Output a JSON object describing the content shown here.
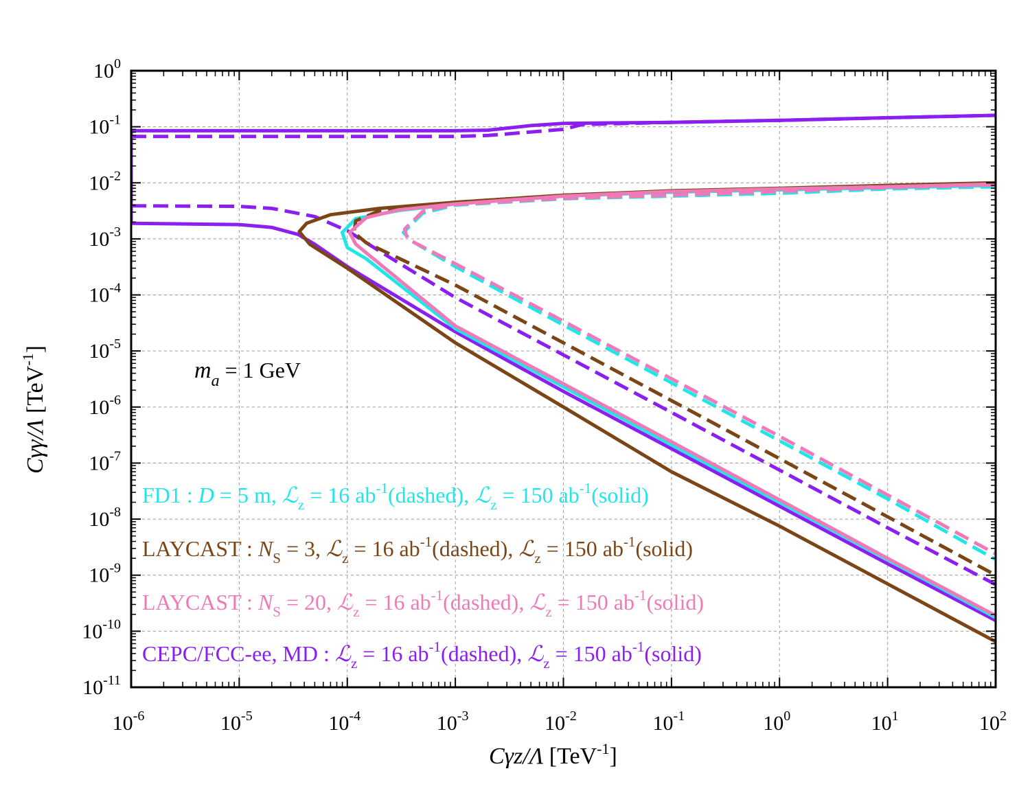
{
  "chart_data": {
    "type": "line",
    "xscale": "log",
    "yscale": "log",
    "xlim": [
      1e-06,
      100
    ],
    "ylim": [
      1e-11,
      1
    ],
    "grid": true,
    "xlabel": {
      "main": "Cγz/Λ",
      "unit_open": " [TeV",
      "unit_exp": "-1",
      "unit_close": "]"
    },
    "ylabel": {
      "main": "Cγγ/Λ",
      "unit_open": " [TeV",
      "unit_exp": "-1",
      "unit_close": "]"
    },
    "x_ticks": [
      {
        "base": "10",
        "exp": "-6"
      },
      {
        "base": "10",
        "exp": "-5"
      },
      {
        "base": "10",
        "exp": "-4"
      },
      {
        "base": "10",
        "exp": "-3"
      },
      {
        "base": "10",
        "exp": "-2"
      },
      {
        "base": "10",
        "exp": "-1"
      },
      {
        "base": "10",
        "exp": "0"
      },
      {
        "base": "10",
        "exp": "1"
      },
      {
        "base": "10",
        "exp": "2"
      }
    ],
    "y_ticks": [
      {
        "base": "10",
        "exp": "0"
      },
      {
        "base": "10",
        "exp": "-1"
      },
      {
        "base": "10",
        "exp": "-2"
      },
      {
        "base": "10",
        "exp": "-3"
      },
      {
        "base": "10",
        "exp": "-4"
      },
      {
        "base": "10",
        "exp": "-5"
      },
      {
        "base": "10",
        "exp": "-6"
      },
      {
        "base": "10",
        "exp": "-7"
      },
      {
        "base": "10",
        "exp": "-8"
      },
      {
        "base": "10",
        "exp": "-9"
      },
      {
        "base": "10",
        "exp": "-10"
      },
      {
        "base": "10",
        "exp": "-11"
      }
    ],
    "annotation": {
      "var": "m",
      "sub": "a",
      "rest": " = 1 GeV"
    },
    "legend": [
      {
        "color": "#22e5e8",
        "parts": [
          {
            "t": "FD1 : "
          },
          {
            "t": "D",
            "it": true
          },
          {
            "t": " = 5 m, "
          },
          {
            "t": "ℒ",
            "it": true
          },
          {
            "t": "z",
            "sub": true
          },
          {
            "t": " = 16 ab"
          },
          {
            "t": "-1",
            "sup": true
          },
          {
            "t": "(dashed), "
          },
          {
            "t": "ℒ",
            "it": true
          },
          {
            "t": "z",
            "sub": true
          },
          {
            "t": " = 150 ab"
          },
          {
            "t": "-1",
            "sup": true
          },
          {
            "t": "(solid)"
          }
        ]
      },
      {
        "color": "#7b4516",
        "parts": [
          {
            "t": "LAYCAST : "
          },
          {
            "t": "N",
            "it": true
          },
          {
            "t": "S",
            "sub": true
          },
          {
            "t": " = 3, "
          },
          {
            "t": "ℒ",
            "it": true
          },
          {
            "t": "z",
            "sub": true
          },
          {
            "t": " = 16 ab"
          },
          {
            "t": "-1",
            "sup": true
          },
          {
            "t": "(dashed), "
          },
          {
            "t": "ℒ",
            "it": true
          },
          {
            "t": "z",
            "sub": true
          },
          {
            "t": " = 150 ab"
          },
          {
            "t": "-1",
            "sup": true
          },
          {
            "t": "(solid)"
          }
        ]
      },
      {
        "color": "#f07ab8",
        "parts": [
          {
            "t": "LAYCAST : "
          },
          {
            "t": "N",
            "it": true
          },
          {
            "t": "S",
            "sub": true
          },
          {
            "t": " = 20, "
          },
          {
            "t": "ℒ",
            "it": true
          },
          {
            "t": "z",
            "sub": true
          },
          {
            "t": " = 16 ab"
          },
          {
            "t": "-1",
            "sup": true
          },
          {
            "t": "(dashed), "
          },
          {
            "t": "ℒ",
            "it": true
          },
          {
            "t": "z",
            "sub": true
          },
          {
            "t": " = 150 ab"
          },
          {
            "t": "-1",
            "sup": true
          },
          {
            "t": "(solid)"
          }
        ]
      },
      {
        "color": "#8b1ff0",
        "parts": [
          {
            "t": "CEPC/FCC-ee, MD : "
          },
          {
            "t": "ℒ",
            "it": true
          },
          {
            "t": "z",
            "sub": true
          },
          {
            "t": " = 16 ab"
          },
          {
            "t": "-1",
            "sup": true
          },
          {
            "t": "(dashed), "
          },
          {
            "t": "ℒ",
            "it": true
          },
          {
            "t": "z",
            "sub": true
          },
          {
            "t": " = 150 ab"
          },
          {
            "t": "-1",
            "sup": true
          },
          {
            "t": "(solid)"
          }
        ]
      }
    ],
    "series": [
      {
        "name": "CEPC/FCC-ee, MD (solid, 150 ab^-1) upper",
        "color": "#8b1ff0",
        "dashed": false,
        "width": 5,
        "points": [
          [
            1e-06,
            0.085
          ],
          [
            0.001,
            0.085
          ],
          [
            0.002,
            0.087
          ],
          [
            0.005,
            0.105
          ],
          [
            0.01,
            0.115
          ],
          [
            0.1,
            0.12
          ],
          [
            1,
            0.13
          ],
          [
            10,
            0.145
          ],
          [
            100,
            0.16
          ]
        ]
      },
      {
        "name": "CEPC/FCC-ee, MD (dashed, 16 ab^-1) upper",
        "color": "#8b1ff0",
        "dashed": true,
        "width": 5,
        "points": [
          [
            1e-06,
            0.067
          ],
          [
            0.001,
            0.067
          ],
          [
            0.002,
            0.07
          ],
          [
            0.01,
            0.09
          ],
          [
            0.015,
            0.11
          ],
          [
            0.1,
            0.12
          ],
          [
            1,
            0.13
          ],
          [
            10,
            0.145
          ],
          [
            100,
            0.16
          ]
        ]
      },
      {
        "name": "CEPC/FCC-ee, MD (solid, 150 ab^-1) left edge",
        "color": "#8b1ff0",
        "dashed": false,
        "width": 5,
        "points": [
          [
            1e-06,
            0.0019
          ],
          [
            1e-06,
            0.085
          ]
        ]
      },
      {
        "name": "CEPC/FCC-ee, MD (solid, 150 ab^-1) lower",
        "color": "#8b1ff0",
        "dashed": false,
        "width": 5,
        "points": [
          [
            1e-06,
            0.0019
          ],
          [
            1e-05,
            0.0018
          ],
          [
            2e-05,
            0.0016
          ],
          [
            3.5e-05,
            0.0012
          ],
          [
            5e-05,
            0.0008
          ],
          [
            0.0001,
            0.00032
          ],
          [
            0.001,
            2.2e-05
          ],
          [
            0.01,
            1.9e-06
          ],
          [
            0.1,
            1.8e-07
          ],
          [
            1,
            1.7e-08
          ],
          [
            10,
            1.6e-09
          ],
          [
            100,
            1.55e-10
          ]
        ]
      },
      {
        "name": "CEPC/FCC-ee, MD (dashed, 16 ab^-1) lower",
        "color": "#8b1ff0",
        "dashed": true,
        "width": 5,
        "points": [
          [
            1e-06,
            0.0039
          ],
          [
            1e-05,
            0.0038
          ],
          [
            2e-05,
            0.0035
          ],
          [
            5e-05,
            0.0025
          ],
          [
            0.0001,
            0.0014
          ],
          [
            0.0002,
            0.0006
          ],
          [
            0.001,
            9e-05
          ],
          [
            0.01,
            8.5e-06
          ],
          [
            0.1,
            8e-07
          ],
          [
            1,
            7.5e-08
          ],
          [
            10,
            7e-09
          ],
          [
            100,
            6.8e-10
          ]
        ]
      },
      {
        "name": "FD1 (solid, 150 ab^-1)",
        "color": "#22e5e8",
        "dashed": false,
        "width": 5,
        "points": [
          [
            100,
            0.009
          ],
          [
            10,
            0.0082
          ],
          [
            1,
            0.0075
          ],
          [
            0.1,
            0.0068
          ],
          [
            0.01,
            0.0058
          ],
          [
            0.001,
            0.0042
          ],
          [
            0.0003,
            0.0032
          ],
          [
            0.00012,
            0.0023
          ],
          [
            9e-05,
            0.0013
          ],
          [
            0.0001,
            0.0007
          ],
          [
            0.00015,
            0.00044
          ],
          [
            0.001,
            2.5e-05
          ],
          [
            0.01,
            2.3e-06
          ],
          [
            0.1,
            2.1e-07
          ],
          [
            1,
            2e-08
          ],
          [
            10,
            1.9e-09
          ],
          [
            100,
            1.75e-10
          ]
        ]
      },
      {
        "name": "FD1 (dashed, 16 ab^-1)",
        "color": "#22e5e8",
        "dashed": true,
        "width": 5,
        "points": [
          [
            100,
            0.0085
          ],
          [
            10,
            0.0078
          ],
          [
            1,
            0.0065
          ],
          [
            0.1,
            0.0058
          ],
          [
            0.01,
            0.0052
          ],
          [
            0.001,
            0.004
          ],
          [
            0.0005,
            0.0029
          ],
          [
            0.00033,
            0.0013
          ],
          [
            0.0004,
            0.0009
          ],
          [
            0.001,
            0.00032
          ],
          [
            0.01,
            2.9e-05
          ],
          [
            0.1,
            2.7e-06
          ],
          [
            1,
            2.5e-07
          ],
          [
            10,
            2.3e-08
          ],
          [
            100,
            1.9e-09
          ]
        ]
      },
      {
        "name": "LAYCAST N_S=3 (solid, 150 ab^-1)",
        "color": "#7b4516",
        "dashed": false,
        "width": 5,
        "points": [
          [
            100,
            0.01
          ],
          [
            10,
            0.009
          ],
          [
            1,
            0.008
          ],
          [
            0.1,
            0.0072
          ],
          [
            0.01,
            0.006
          ],
          [
            0.001,
            0.0045
          ],
          [
            0.0002,
            0.0035
          ],
          [
            7e-05,
            0.0027
          ],
          [
            4.2e-05,
            0.0019
          ],
          [
            3.6e-05,
            0.00135
          ],
          [
            4.5e-05,
            0.0008
          ],
          [
            0.0001,
            0.0003
          ],
          [
            0.001,
            1.4e-05
          ],
          [
            0.01,
            1e-06
          ],
          [
            0.1,
            7e-08
          ],
          [
            1,
            7.5e-09
          ],
          [
            10,
            7e-10
          ],
          [
            100,
            6.5e-11
          ]
        ]
      },
      {
        "name": "LAYCAST N_S=3 (dashed, 16 ab^-1)",
        "color": "#7b4516",
        "dashed": true,
        "width": 5,
        "points": [
          [
            100,
            0.0095
          ],
          [
            10,
            0.0085
          ],
          [
            1,
            0.0078
          ],
          [
            0.1,
            0.007
          ],
          [
            0.01,
            0.006
          ],
          [
            0.001,
            0.0045
          ],
          [
            0.0002,
            0.0032
          ],
          [
            0.00012,
            0.0021
          ],
          [
            0.000115,
            0.0013
          ],
          [
            0.00015,
            0.00085
          ],
          [
            0.001,
            0.00015
          ],
          [
            0.01,
            1.4e-05
          ],
          [
            0.1,
            1.3e-06
          ],
          [
            1,
            1.2e-07
          ],
          [
            10,
            1.1e-08
          ],
          [
            100,
            1e-09
          ]
        ]
      },
      {
        "name": "LAYCAST N_S=20 (solid, 150 ab^-1)",
        "color": "#f07ab8",
        "dashed": false,
        "width": 5,
        "points": [
          [
            100,
            0.0095
          ],
          [
            10,
            0.0085
          ],
          [
            1,
            0.0078
          ],
          [
            0.1,
            0.007
          ],
          [
            0.01,
            0.0058
          ],
          [
            0.001,
            0.0042
          ],
          [
            0.0003,
            0.0033
          ],
          [
            0.00015,
            0.0024
          ],
          [
            0.000105,
            0.0013
          ],
          [
            0.00012,
            0.0008
          ],
          [
            0.001,
            2.8e-05
          ],
          [
            0.01,
            2.6e-06
          ],
          [
            0.1,
            2.4e-07
          ],
          [
            1,
            2.2e-08
          ],
          [
            10,
            2e-09
          ],
          [
            100,
            1.9e-10
          ]
        ]
      },
      {
        "name": "LAYCAST N_S=20 (dashed, 16 ab^-1)",
        "color": "#f07ab8",
        "dashed": true,
        "width": 5,
        "points": [
          [
            100,
            0.0092
          ],
          [
            10,
            0.0082
          ],
          [
            1,
            0.007
          ],
          [
            0.1,
            0.006
          ],
          [
            0.01,
            0.0053
          ],
          [
            0.001,
            0.0041
          ],
          [
            0.0005,
            0.0031
          ],
          [
            0.00034,
            0.0015
          ],
          [
            0.00036,
            0.001
          ],
          [
            0.001,
            0.00036
          ],
          [
            0.01,
            3.4e-05
          ],
          [
            0.1,
            3.2e-06
          ],
          [
            1,
            3e-07
          ],
          [
            10,
            2.7e-08
          ],
          [
            100,
            2.4e-09
          ]
        ]
      }
    ]
  }
}
